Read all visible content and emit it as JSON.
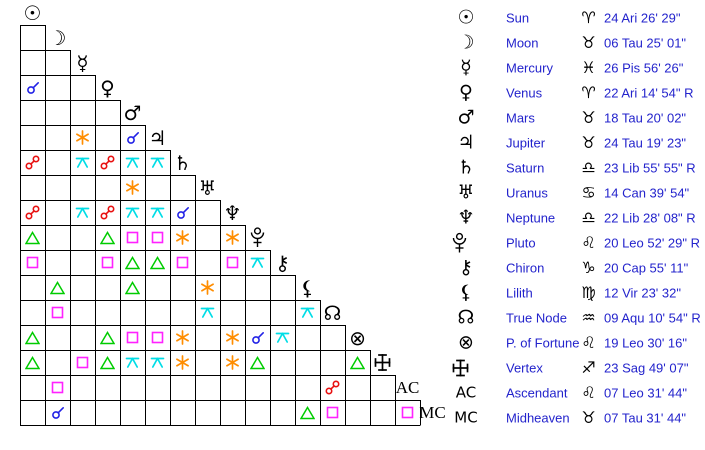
{
  "colors": {
    "background": "#ffffff",
    "grid_line": "#000000",
    "glyph_black": "#000000",
    "table_text_blue": "#2323cc",
    "aspect": {
      "conjunction": "#2222e6",
      "opposition": "#e81111",
      "trine": "#00cc00",
      "square": "#ff22ff",
      "sextile": "#ff8d00",
      "quincunx": "#00dde6"
    }
  },
  "aspect_grid": {
    "planets": [
      {
        "name": "Sun",
        "icon": "sun-icon"
      },
      {
        "name": "Moon",
        "icon": "moon-icon"
      },
      {
        "name": "Mercury",
        "icon": "mercury-icon"
      },
      {
        "name": "Venus",
        "icon": "venus-icon"
      },
      {
        "name": "Mars",
        "icon": "mars-icon"
      },
      {
        "name": "Jupiter",
        "icon": "jupiter-icon"
      },
      {
        "name": "Saturn",
        "icon": "saturn-icon"
      },
      {
        "name": "Uranus",
        "icon": "uranus-icon"
      },
      {
        "name": "Neptune",
        "icon": "neptune-icon"
      },
      {
        "name": "Pluto",
        "icon": "pluto-icon"
      },
      {
        "name": "Chiron",
        "icon": "chiron-icon"
      },
      {
        "name": "Lilith",
        "icon": "lilith-icon"
      },
      {
        "name": "True Node",
        "icon": "true-node-icon"
      },
      {
        "name": "P. of Fortune",
        "icon": "fortune-icon"
      },
      {
        "name": "Vertex",
        "icon": "vertex-icon"
      },
      {
        "name": "Ascendant",
        "icon": "ascendant-icon",
        "grid_label": "AC"
      },
      {
        "name": "Midheaven",
        "icon": "midheaven-icon",
        "grid_label": "MC"
      }
    ],
    "aspects": [
      {
        "row": 4,
        "col": 1,
        "type": "conjunction"
      },
      {
        "row": 6,
        "col": 3,
        "type": "sextile"
      },
      {
        "row": 6,
        "col": 5,
        "type": "conjunction"
      },
      {
        "row": 7,
        "col": 1,
        "type": "opposition"
      },
      {
        "row": 7,
        "col": 3,
        "type": "quincunx"
      },
      {
        "row": 7,
        "col": 4,
        "type": "opposition"
      },
      {
        "row": 7,
        "col": 5,
        "type": "quincunx"
      },
      {
        "row": 7,
        "col": 6,
        "type": "quincunx"
      },
      {
        "row": 8,
        "col": 5,
        "type": "sextile"
      },
      {
        "row": 9,
        "col": 1,
        "type": "opposition"
      },
      {
        "row": 9,
        "col": 3,
        "type": "quincunx"
      },
      {
        "row": 9,
        "col": 4,
        "type": "opposition"
      },
      {
        "row": 9,
        "col": 5,
        "type": "quincunx"
      },
      {
        "row": 9,
        "col": 6,
        "type": "quincunx"
      },
      {
        "row": 9,
        "col": 7,
        "type": "conjunction"
      },
      {
        "row": 10,
        "col": 1,
        "type": "trine"
      },
      {
        "row": 10,
        "col": 4,
        "type": "trine"
      },
      {
        "row": 10,
        "col": 5,
        "type": "square"
      },
      {
        "row": 10,
        "col": 6,
        "type": "square"
      },
      {
        "row": 10,
        "col": 7,
        "type": "sextile"
      },
      {
        "row": 10,
        "col": 9,
        "type": "sextile"
      },
      {
        "row": 11,
        "col": 1,
        "type": "square"
      },
      {
        "row": 11,
        "col": 4,
        "type": "square"
      },
      {
        "row": 11,
        "col": 5,
        "type": "trine"
      },
      {
        "row": 11,
        "col": 6,
        "type": "trine"
      },
      {
        "row": 11,
        "col": 7,
        "type": "square"
      },
      {
        "row": 11,
        "col": 9,
        "type": "square"
      },
      {
        "row": 11,
        "col": 10,
        "type": "quincunx"
      },
      {
        "row": 12,
        "col": 2,
        "type": "trine"
      },
      {
        "row": 12,
        "col": 5,
        "type": "trine"
      },
      {
        "row": 12,
        "col": 8,
        "type": "sextile"
      },
      {
        "row": 13,
        "col": 2,
        "type": "square"
      },
      {
        "row": 13,
        "col": 8,
        "type": "quincunx"
      },
      {
        "row": 13,
        "col": 12,
        "type": "quincunx"
      },
      {
        "row": 14,
        "col": 1,
        "type": "trine"
      },
      {
        "row": 14,
        "col": 4,
        "type": "trine"
      },
      {
        "row": 14,
        "col": 5,
        "type": "square"
      },
      {
        "row": 14,
        "col": 6,
        "type": "square"
      },
      {
        "row": 14,
        "col": 7,
        "type": "sextile"
      },
      {
        "row": 14,
        "col": 9,
        "type": "sextile"
      },
      {
        "row": 14,
        "col": 10,
        "type": "conjunction"
      },
      {
        "row": 14,
        "col": 11,
        "type": "quincunx"
      },
      {
        "row": 15,
        "col": 1,
        "type": "trine"
      },
      {
        "row": 15,
        "col": 3,
        "type": "square"
      },
      {
        "row": 15,
        "col": 4,
        "type": "trine"
      },
      {
        "row": 15,
        "col": 5,
        "type": "quincunx"
      },
      {
        "row": 15,
        "col": 6,
        "type": "quincunx"
      },
      {
        "row": 15,
        "col": 7,
        "type": "sextile"
      },
      {
        "row": 15,
        "col": 9,
        "type": "sextile"
      },
      {
        "row": 15,
        "col": 10,
        "type": "trine"
      },
      {
        "row": 15,
        "col": 14,
        "type": "trine"
      },
      {
        "row": 16,
        "col": 2,
        "type": "square"
      },
      {
        "row": 16,
        "col": 13,
        "type": "opposition"
      },
      {
        "row": 17,
        "col": 2,
        "type": "conjunction"
      },
      {
        "row": 17,
        "col": 12,
        "type": "trine"
      },
      {
        "row": 17,
        "col": 13,
        "type": "square"
      },
      {
        "row": 17,
        "col": 16,
        "type": "square"
      }
    ]
  },
  "positions_table": {
    "rows": [
      {
        "planet": "Sun",
        "icon": "sun-icon",
        "sign": "Aries",
        "sign_icon": "aries-icon",
        "position": "24 Ari 26' 29\""
      },
      {
        "planet": "Moon",
        "icon": "moon-icon",
        "sign": "Taurus",
        "sign_icon": "taurus-icon",
        "position": "06 Tau 25' 01\""
      },
      {
        "planet": "Mercury",
        "icon": "mercury-icon",
        "sign": "Pisces",
        "sign_icon": "pisces-icon",
        "position": "26 Pis 56' 26\""
      },
      {
        "planet": "Venus",
        "icon": "venus-icon",
        "sign": "Aries",
        "sign_icon": "aries-icon",
        "position": "22 Ari 14' 54\" R"
      },
      {
        "planet": "Mars",
        "icon": "mars-icon",
        "sign": "Taurus",
        "sign_icon": "taurus-icon",
        "position": "18 Tau 20' 02\""
      },
      {
        "planet": "Jupiter",
        "icon": "jupiter-icon",
        "sign": "Taurus",
        "sign_icon": "taurus-icon",
        "position": "24 Tau 19' 23\""
      },
      {
        "planet": "Saturn",
        "icon": "saturn-icon",
        "sign": "Libra",
        "sign_icon": "libra-icon",
        "position": "23 Lib 55' 55\" R"
      },
      {
        "planet": "Uranus",
        "icon": "uranus-icon",
        "sign": "Cancer",
        "sign_icon": "cancer-icon",
        "position": "14 Can 39' 54\""
      },
      {
        "planet": "Neptune",
        "icon": "neptune-icon",
        "sign": "Libra",
        "sign_icon": "libra-icon",
        "position": "22 Lib 28' 08\" R"
      },
      {
        "planet": "Pluto",
        "icon": "pluto-icon",
        "sign": "Leo",
        "sign_icon": "leo-icon",
        "position": "20 Leo 52' 29\" R"
      },
      {
        "planet": "Chiron",
        "icon": "chiron-icon",
        "sign": "Capricorn",
        "sign_icon": "capricorn-icon",
        "position": "20 Cap 55' 11\""
      },
      {
        "planet": "Lilith",
        "icon": "lilith-icon",
        "sign": "Virgo",
        "sign_icon": "virgo-icon",
        "position": "12 Vir 23' 32\""
      },
      {
        "planet": "True Node",
        "icon": "true-node-icon",
        "sign": "Aquarius",
        "sign_icon": "aquarius-icon",
        "position": "09 Aqu 10' 54\" R"
      },
      {
        "planet": "P. of Fortune",
        "icon": "fortune-icon",
        "sign": "Leo",
        "sign_icon": "leo-icon",
        "position": "19 Leo 30' 16\""
      },
      {
        "planet": "Vertex",
        "icon": "vertex-icon",
        "sign": "Sagittarius",
        "sign_icon": "sagittarius-icon",
        "position": "23 Sag 49' 07\""
      },
      {
        "planet": "Ascendant",
        "icon": "ascendant-icon",
        "sign": "Leo",
        "sign_icon": "leo-icon",
        "position": "07 Leo 31' 44\"",
        "grid_label": "AC"
      },
      {
        "planet": "Midheaven",
        "icon": "midheaven-icon",
        "sign": "Taurus",
        "sign_icon": "taurus-icon",
        "position": "07 Tau 31' 44\"",
        "grid_label": "MC"
      }
    ]
  }
}
